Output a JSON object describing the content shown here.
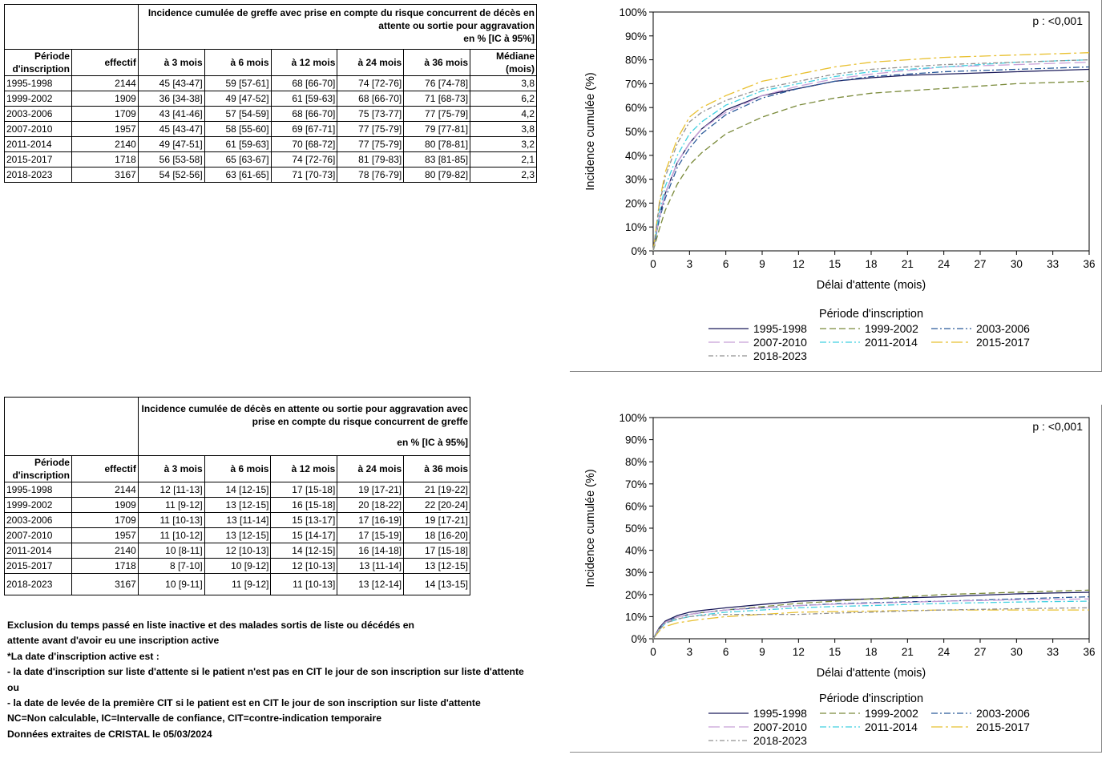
{
  "table1": {
    "title_line1": "Incidence cumulée de greffe avec prise en compte du risque concurrent de décès en",
    "title_line2": "attente ou sortie pour aggravation",
    "title_line3": "en % [IC à 95%]",
    "col_periode_1": "Période",
    "col_periode_2": "d'inscription",
    "col_effectif": "effectif",
    "col_3m": "à 3 mois",
    "col_6m": "à 6 mois",
    "col_12m": "à 12 mois",
    "col_24m": "à 24 mois",
    "col_36m": "à 36 mois",
    "col_median_1": "Médiane",
    "col_median_2": "(mois)",
    "rows": [
      {
        "periode": "1995-1998",
        "effectif": "2144",
        "m3": "45 [43-47]",
        "m6": "59 [57-61]",
        "m12": "68 [66-70]",
        "m24": "74 [72-76]",
        "m36": "76 [74-78]",
        "median": "3,8"
      },
      {
        "periode": "1999-2002",
        "effectif": "1909",
        "m3": "36 [34-38]",
        "m6": "49 [47-52]",
        "m12": "61 [59-63]",
        "m24": "68 [66-70]",
        "m36": "71 [68-73]",
        "median": "6,2"
      },
      {
        "periode": "2003-2006",
        "effectif": "1709",
        "m3": "43 [41-46]",
        "m6": "57 [54-59]",
        "m12": "68 [66-70]",
        "m24": "75 [73-77]",
        "m36": "77 [75-79]",
        "median": "4,2"
      },
      {
        "periode": "2007-2010",
        "effectif": "1957",
        "m3": "45 [43-47]",
        "m6": "58 [55-60]",
        "m12": "69 [67-71]",
        "m24": "77 [75-79]",
        "m36": "79 [77-81]",
        "median": "3,8"
      },
      {
        "periode": "2011-2014",
        "effectif": "2140",
        "m3": "49 [47-51]",
        "m6": "61 [59-63]",
        "m12": "70 [68-72]",
        "m24": "77 [75-79]",
        "m36": "80 [78-81]",
        "median": "3,2"
      },
      {
        "periode": "2015-2017",
        "effectif": "1718",
        "m3": "56 [53-58]",
        "m6": "65 [63-67]",
        "m12": "74 [72-76]",
        "m24": "81 [79-83]",
        "m36": "83 [81-85]",
        "median": "2,1"
      },
      {
        "periode": "2018-2023",
        "effectif": "3167",
        "m3": "54 [52-56]",
        "m6": "63 [61-65]",
        "m12": "71 [70-73]",
        "m24": "78 [76-79]",
        "m36": "80 [79-82]",
        "median": "2,3"
      }
    ]
  },
  "table2": {
    "title_line1": "Incidence cumulée de décès en attente ou sortie pour aggravation avec",
    "title_line2": "prise en compte du risque concurrent de greffe",
    "title_line3": "en % [IC à 95%]",
    "col_periode_1": "Période",
    "col_periode_2": "d'inscription",
    "col_effectif": "effectif",
    "col_3m": "à 3 mois",
    "col_6m": "à 6 mois",
    "col_12m": "à 12 mois",
    "col_24m": "à 24 mois",
    "col_36m": "à 36 mois",
    "rows": [
      {
        "periode": "1995-1998",
        "effectif": "2144",
        "m3": "12 [11-13]",
        "m6": "14 [12-15]",
        "m12": "17 [15-18]",
        "m24": "19 [17-21]",
        "m36": "21 [19-22]"
      },
      {
        "periode": "1999-2002",
        "effectif": "1909",
        "m3": "11 [9-12]",
        "m6": "13 [12-15]",
        "m12": "16 [15-18]",
        "m24": "20 [18-22]",
        "m36": "22 [20-24]"
      },
      {
        "periode": "2003-2006",
        "effectif": "1709",
        "m3": "11 [10-13]",
        "m6": "13 [11-14]",
        "m12": "15 [13-17]",
        "m24": "17 [16-19]",
        "m36": "19 [17-21]"
      },
      {
        "periode": "2007-2010",
        "effectif": "1957",
        "m3": "11 [10-12]",
        "m6": "13 [12-15]",
        "m12": "15 [14-17]",
        "m24": "17 [15-19]",
        "m36": "18 [16-20]"
      },
      {
        "periode": "2011-2014",
        "effectif": "2140",
        "m3": "10 [8-11]",
        "m6": "12 [10-13]",
        "m12": "14 [12-15]",
        "m24": "16 [14-18]",
        "m36": "17 [15-18]"
      },
      {
        "periode": "2015-2017",
        "effectif": "1718",
        "m3": "8 [7-10]",
        "m6": "10 [9-12]",
        "m12": "12 [10-13]",
        "m24": "13 [11-14]",
        "m36": "13 [12-15]"
      },
      {
        "periode": "2018-2023",
        "effectif": "3167",
        "m3": "10 [9-11]",
        "m6": "11 [9-12]",
        "m12": "11 [10-13]",
        "m24": "13 [12-14]",
        "m36": "14 [13-15]"
      }
    ]
  },
  "notes": [
    "Exclusion du temps passé en liste inactive et des malades sortis de liste ou décédés en",
    "attente avant d'avoir eu une inscription active",
    "*La date d'inscription active est :",
    "- la date d'inscription sur liste d'attente si le patient n'est pas en CIT le jour de son inscription sur liste d'attente",
    "ou",
    "- la date de levée de la première CIT si le patient est en CIT le jour de son inscription sur liste d'attente",
    "NC=Non calculable, IC=Intervalle de confiance, CIT=contre-indication temporaire",
    "Données extraites de CRISTAL le 05/03/2024"
  ],
  "chart_data": [
    {
      "type": "line",
      "pvalue": "p : <0,001",
      "xlabel": "Délai d'attente (mois)",
      "ylabel": "Incidence cumulée (%)",
      "xlim": [
        0,
        36
      ],
      "ylim": [
        0,
        100
      ],
      "xticks": [
        "0",
        "3",
        "6",
        "9",
        "12",
        "15",
        "18",
        "21",
        "24",
        "27",
        "30",
        "33",
        "36"
      ],
      "yticks": [
        "0%",
        "10%",
        "20%",
        "30%",
        "40%",
        "50%",
        "60%",
        "70%",
        "80%",
        "90%",
        "100%"
      ],
      "legend_title": "Période d'inscription",
      "x": [
        0,
        0.5,
        1,
        2,
        3,
        4,
        6,
        9,
        12,
        15,
        18,
        21,
        24,
        27,
        30,
        33,
        36
      ],
      "series": [
        {
          "name": "1995-1998",
          "color": "#1a1a5a",
          "dash": "",
          "values": [
            0,
            14,
            24,
            37,
            45,
            51,
            59,
            65,
            68,
            71,
            72.5,
            73.5,
            74,
            74.5,
            75,
            75.5,
            76
          ]
        },
        {
          "name": "1999-2002",
          "color": "#7a8a3a",
          "dash": "8,4",
          "values": [
            0,
            9,
            17,
            28,
            36,
            41,
            49,
            56,
            61,
            64,
            66,
            67,
            68,
            69,
            70,
            70.5,
            71
          ]
        },
        {
          "name": "2003-2006",
          "color": "#2a5a9a",
          "dash": "8,3,2,3",
          "values": [
            0,
            13,
            22,
            35,
            43,
            49,
            57,
            64,
            68,
            71,
            73,
            74,
            75,
            75.5,
            76,
            76.5,
            77
          ]
        },
        {
          "name": "2007-2010",
          "color": "#c8a0d8",
          "dash": "14,5",
          "values": [
            0,
            14,
            24,
            37,
            45,
            51,
            58,
            65,
            69,
            72,
            74,
            75.5,
            77,
            77.5,
            78,
            78.5,
            79
          ]
        },
        {
          "name": "2011-2014",
          "color": "#40d0e0",
          "dash": "8,3,2,3",
          "values": [
            0,
            16,
            27,
            40,
            49,
            54,
            61,
            67,
            70,
            73,
            75,
            76,
            77,
            78,
            79,
            79.5,
            80
          ]
        },
        {
          "name": "2015-2017",
          "color": "#e8c030",
          "dash": "14,4,3,4",
          "values": [
            0,
            20,
            33,
            47,
            56,
            60,
            65,
            71,
            74,
            77,
            79,
            80,
            81,
            81.5,
            82,
            82.5,
            83
          ]
        },
        {
          "name": "2018-2023",
          "color": "#909090",
          "dash": "6,3,2,3",
          "values": [
            0,
            19,
            31,
            45,
            54,
            58,
            63,
            68,
            71,
            74,
            76,
            77,
            78,
            78.5,
            79,
            79.5,
            80
          ]
        }
      ]
    },
    {
      "type": "line",
      "pvalue": "p : <0,001",
      "xlabel": "Délai d'attente (mois)",
      "ylabel": "Incidence cumulée (%)",
      "xlim": [
        0,
        36
      ],
      "ylim": [
        0,
        100
      ],
      "xticks": [
        "0",
        "3",
        "6",
        "9",
        "12",
        "15",
        "18",
        "21",
        "24",
        "27",
        "30",
        "33",
        "36"
      ],
      "yticks": [
        "0%",
        "10%",
        "20%",
        "30%",
        "40%",
        "50%",
        "60%",
        "70%",
        "80%",
        "90%",
        "100%"
      ],
      "legend_title": "Période d'inscription",
      "x": [
        0,
        0.5,
        1,
        2,
        3,
        4,
        6,
        9,
        12,
        15,
        18,
        21,
        24,
        27,
        30,
        33,
        36
      ],
      "series": [
        {
          "name": "1995-1998",
          "color": "#1a1a5a",
          "dash": "",
          "values": [
            0,
            5,
            8,
            10.5,
            12,
            12.8,
            14,
            15.5,
            17,
            17.5,
            18,
            18.5,
            19,
            19.7,
            20.3,
            20.7,
            21
          ]
        },
        {
          "name": "1999-2002",
          "color": "#7a8a3a",
          "dash": "8,4",
          "values": [
            0,
            4.5,
            7.5,
            9.8,
            11,
            11.8,
            13,
            14.5,
            16,
            17,
            18,
            19,
            20,
            20.5,
            21,
            21.5,
            22
          ]
        },
        {
          "name": "2003-2006",
          "color": "#2a5a9a",
          "dash": "8,3,2,3",
          "values": [
            0,
            4.5,
            7.5,
            9.8,
            11,
            11.8,
            13,
            14,
            15,
            15.8,
            16.3,
            16.7,
            17,
            17.5,
            18,
            18.5,
            19
          ]
        },
        {
          "name": "2007-2010",
          "color": "#c8a0d8",
          "dash": "14,5",
          "values": [
            0,
            4.5,
            7.5,
            9.8,
            11,
            11.8,
            13,
            14,
            15,
            15.6,
            16,
            16.5,
            17,
            17.3,
            17.6,
            17.8,
            18
          ]
        },
        {
          "name": "2011-2014",
          "color": "#40d0e0",
          "dash": "8,3,2,3",
          "values": [
            0,
            4,
            7,
            8.8,
            10,
            10.8,
            12,
            13,
            14,
            14.6,
            15,
            15.5,
            16,
            16.3,
            16.6,
            16.8,
            17
          ]
        },
        {
          "name": "2015-2017",
          "color": "#e8c030",
          "dash": "14,4,3,4",
          "values": [
            0,
            3.5,
            5.5,
            7.2,
            8,
            8.8,
            10,
            11,
            12,
            12.3,
            12.5,
            12.8,
            13,
            13,
            13,
            13,
            13
          ]
        },
        {
          "name": "2018-2023",
          "color": "#909090",
          "dash": "6,3,2,3",
          "values": [
            0,
            4,
            7,
            9,
            10,
            10.5,
            11,
            11,
            11,
            11.6,
            12,
            12.6,
            13,
            13.3,
            13.6,
            13.8,
            14
          ]
        }
      ]
    }
  ]
}
